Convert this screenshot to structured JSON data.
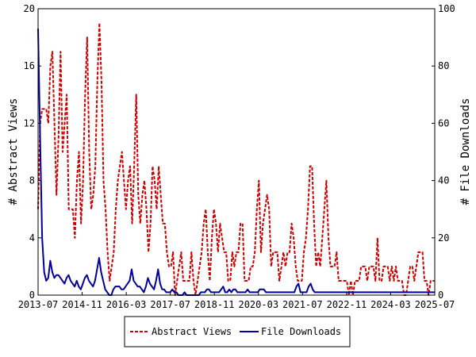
{
  "chart_data": {
    "type": "line",
    "x_ticks": [
      "2013-07",
      "2014-11",
      "2016-03",
      "2017-07",
      "2018-11",
      "2020-03",
      "2021-07",
      "2022-11",
      "2024-03",
      "2025-07"
    ],
    "x_range": [
      "2013-07",
      "2025-07"
    ],
    "ylabel_left": "# Abstract Views",
    "ylabel_right": "# File Downloads",
    "ylim_left": [
      0,
      20
    ],
    "ylim_right": [
      0,
      100
    ],
    "yticks_left": [
      0,
      4,
      8,
      12,
      16,
      20
    ],
    "yticks_right": [
      0,
      20,
      40,
      60,
      80,
      100
    ],
    "grid": false,
    "legend_position": "bottom-center",
    "colors": {
      "abstract_views": "#cc0000",
      "file_downloads": "#000099"
    },
    "series": [
      {
        "name": "Abstract Views",
        "axis": "left",
        "style": "dashed",
        "values": [
          6,
          12,
          13,
          13,
          13,
          12,
          16,
          17,
          12,
          7,
          11,
          17,
          10,
          12,
          14,
          6,
          6,
          6,
          4,
          8,
          10,
          5,
          8,
          14,
          18,
          10,
          6,
          7,
          9,
          15,
          19,
          15,
          8,
          6,
          3,
          1,
          2,
          3,
          6,
          8,
          9,
          10,
          8,
          6,
          8,
          9,
          5,
          9,
          14,
          7,
          5,
          7,
          8,
          6,
          3,
          5,
          9,
          8,
          6,
          9,
          7,
          5,
          5,
          3,
          2,
          2,
          3,
          0,
          1,
          2,
          3,
          1,
          1,
          1,
          1,
          3,
          1,
          0,
          1,
          2,
          3,
          5,
          6,
          3,
          1,
          4,
          6,
          5,
          3,
          5,
          4,
          3,
          3,
          1,
          1,
          3,
          2,
          3,
          3,
          5,
          5,
          1,
          1,
          1,
          2,
          2,
          3,
          6,
          8,
          3,
          5,
          6,
          7,
          6,
          2,
          3,
          3,
          3,
          1,
          2,
          3,
          2,
          3,
          3,
          5,
          4,
          2,
          1,
          1,
          1,
          3,
          4,
          6,
          9,
          9,
          5,
          2,
          3,
          2,
          4,
          6,
          8,
          4,
          2,
          2,
          2,
          3,
          1,
          1,
          1,
          1,
          1,
          0,
          1,
          0,
          1,
          1,
          1,
          2,
          2,
          2,
          1,
          2,
          2,
          2,
          1,
          4,
          1,
          1,
          2,
          2,
          2,
          1,
          2,
          1,
          2,
          1,
          1,
          1,
          0,
          0,
          1,
          2,
          2,
          1,
          2,
          3,
          3,
          3,
          1,
          1,
          0,
          1,
          1,
          1
        ]
      },
      {
        "name": "File Downloads",
        "axis": "right",
        "style": "solid",
        "values": [
          93,
          55,
          20,
          8,
          5,
          6,
          12,
          8,
          6,
          7,
          7,
          6,
          5,
          4,
          6,
          7,
          5,
          4,
          3,
          5,
          3,
          2,
          4,
          6,
          7,
          5,
          4,
          3,
          5,
          9,
          13,
          8,
          5,
          2,
          1,
          0,
          0,
          2,
          3,
          3,
          3,
          2,
          2,
          3,
          4,
          5,
          9,
          5,
          4,
          3,
          3,
          2,
          1,
          3,
          6,
          4,
          3,
          2,
          5,
          9,
          4,
          2,
          2,
          1,
          1,
          1,
          2,
          1,
          1,
          0,
          0,
          0,
          1,
          0,
          0,
          0,
          0,
          0,
          0,
          0,
          1,
          1,
          1,
          2,
          2,
          1,
          1,
          1,
          1,
          1,
          2,
          3,
          1,
          1,
          2,
          1,
          2,
          2,
          1,
          1,
          1,
          1,
          1,
          2,
          1,
          1,
          1,
          1,
          1,
          2,
          2,
          2,
          1,
          1,
          1,
          1,
          1,
          1,
          1,
          1,
          1,
          1,
          1,
          1,
          1,
          1,
          1,
          3,
          4,
          1,
          1,
          1,
          1,
          3,
          4,
          2,
          1,
          1,
          1,
          1,
          1,
          1,
          1,
          1,
          1,
          1,
          1,
          1,
          1,
          1,
          1,
          1,
          1,
          1,
          1,
          1,
          1,
          1,
          1,
          1,
          1,
          1,
          1,
          1,
          1,
          1,
          1,
          1,
          1,
          1,
          1,
          1,
          1,
          1,
          1,
          1,
          1,
          1,
          1,
          1,
          1,
          1,
          1,
          1,
          1,
          1,
          1,
          1,
          1,
          1,
          1,
          1,
          1,
          1,
          1,
          1
        ]
      }
    ]
  }
}
